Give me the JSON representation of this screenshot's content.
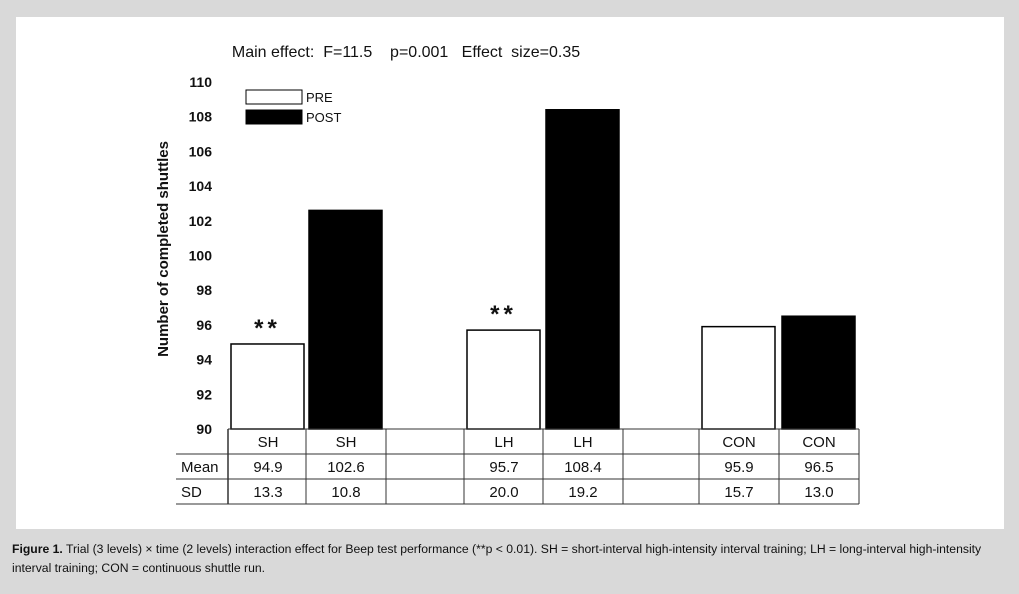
{
  "chart_data": {
    "type": "bar",
    "title": "Main effect:  F=11.5    p=0.001   Effect  size=0.35",
    "ylabel": "Number of completed shuttles",
    "ylim": [
      90,
      110
    ],
    "yticks": [
      90,
      92,
      94,
      96,
      98,
      100,
      102,
      104,
      106,
      108,
      110
    ],
    "grid": false,
    "legend_position": "top-left",
    "groups": [
      "SH",
      "LH",
      "CON"
    ],
    "series": [
      {
        "name": "PRE",
        "color": "#ffffff",
        "values": [
          94.9,
          95.7,
          95.9
        ]
      },
      {
        "name": "POST",
        "color": "#000000",
        "values": [
          102.6,
          108.4,
          96.5
        ]
      }
    ],
    "annotations": [
      "**",
      "",
      "**",
      "",
      "",
      ""
    ],
    "table": {
      "header": [
        "SH",
        "SH",
        "",
        "LH",
        "LH",
        "",
        "CON",
        "CON"
      ],
      "rows": [
        {
          "label": "Mean",
          "cells": [
            "94.9",
            "102.6",
            "",
            "95.7",
            "108.4",
            "",
            "95.9",
            "96.5"
          ]
        },
        {
          "label": "SD",
          "cells": [
            "13.3",
            "10.8",
            "",
            "20.0",
            "19.2",
            "",
            "15.7",
            "13.0"
          ]
        }
      ]
    }
  },
  "caption": {
    "label": "Figure 1.",
    "text": "Trial (3 levels) × time (2 levels) interaction effect for Beep test performance (**p < 0.01). SH = short-interval high-intensity interval training; LH = long-interval high-intensity interval training; CON = continuous shuttle run."
  }
}
